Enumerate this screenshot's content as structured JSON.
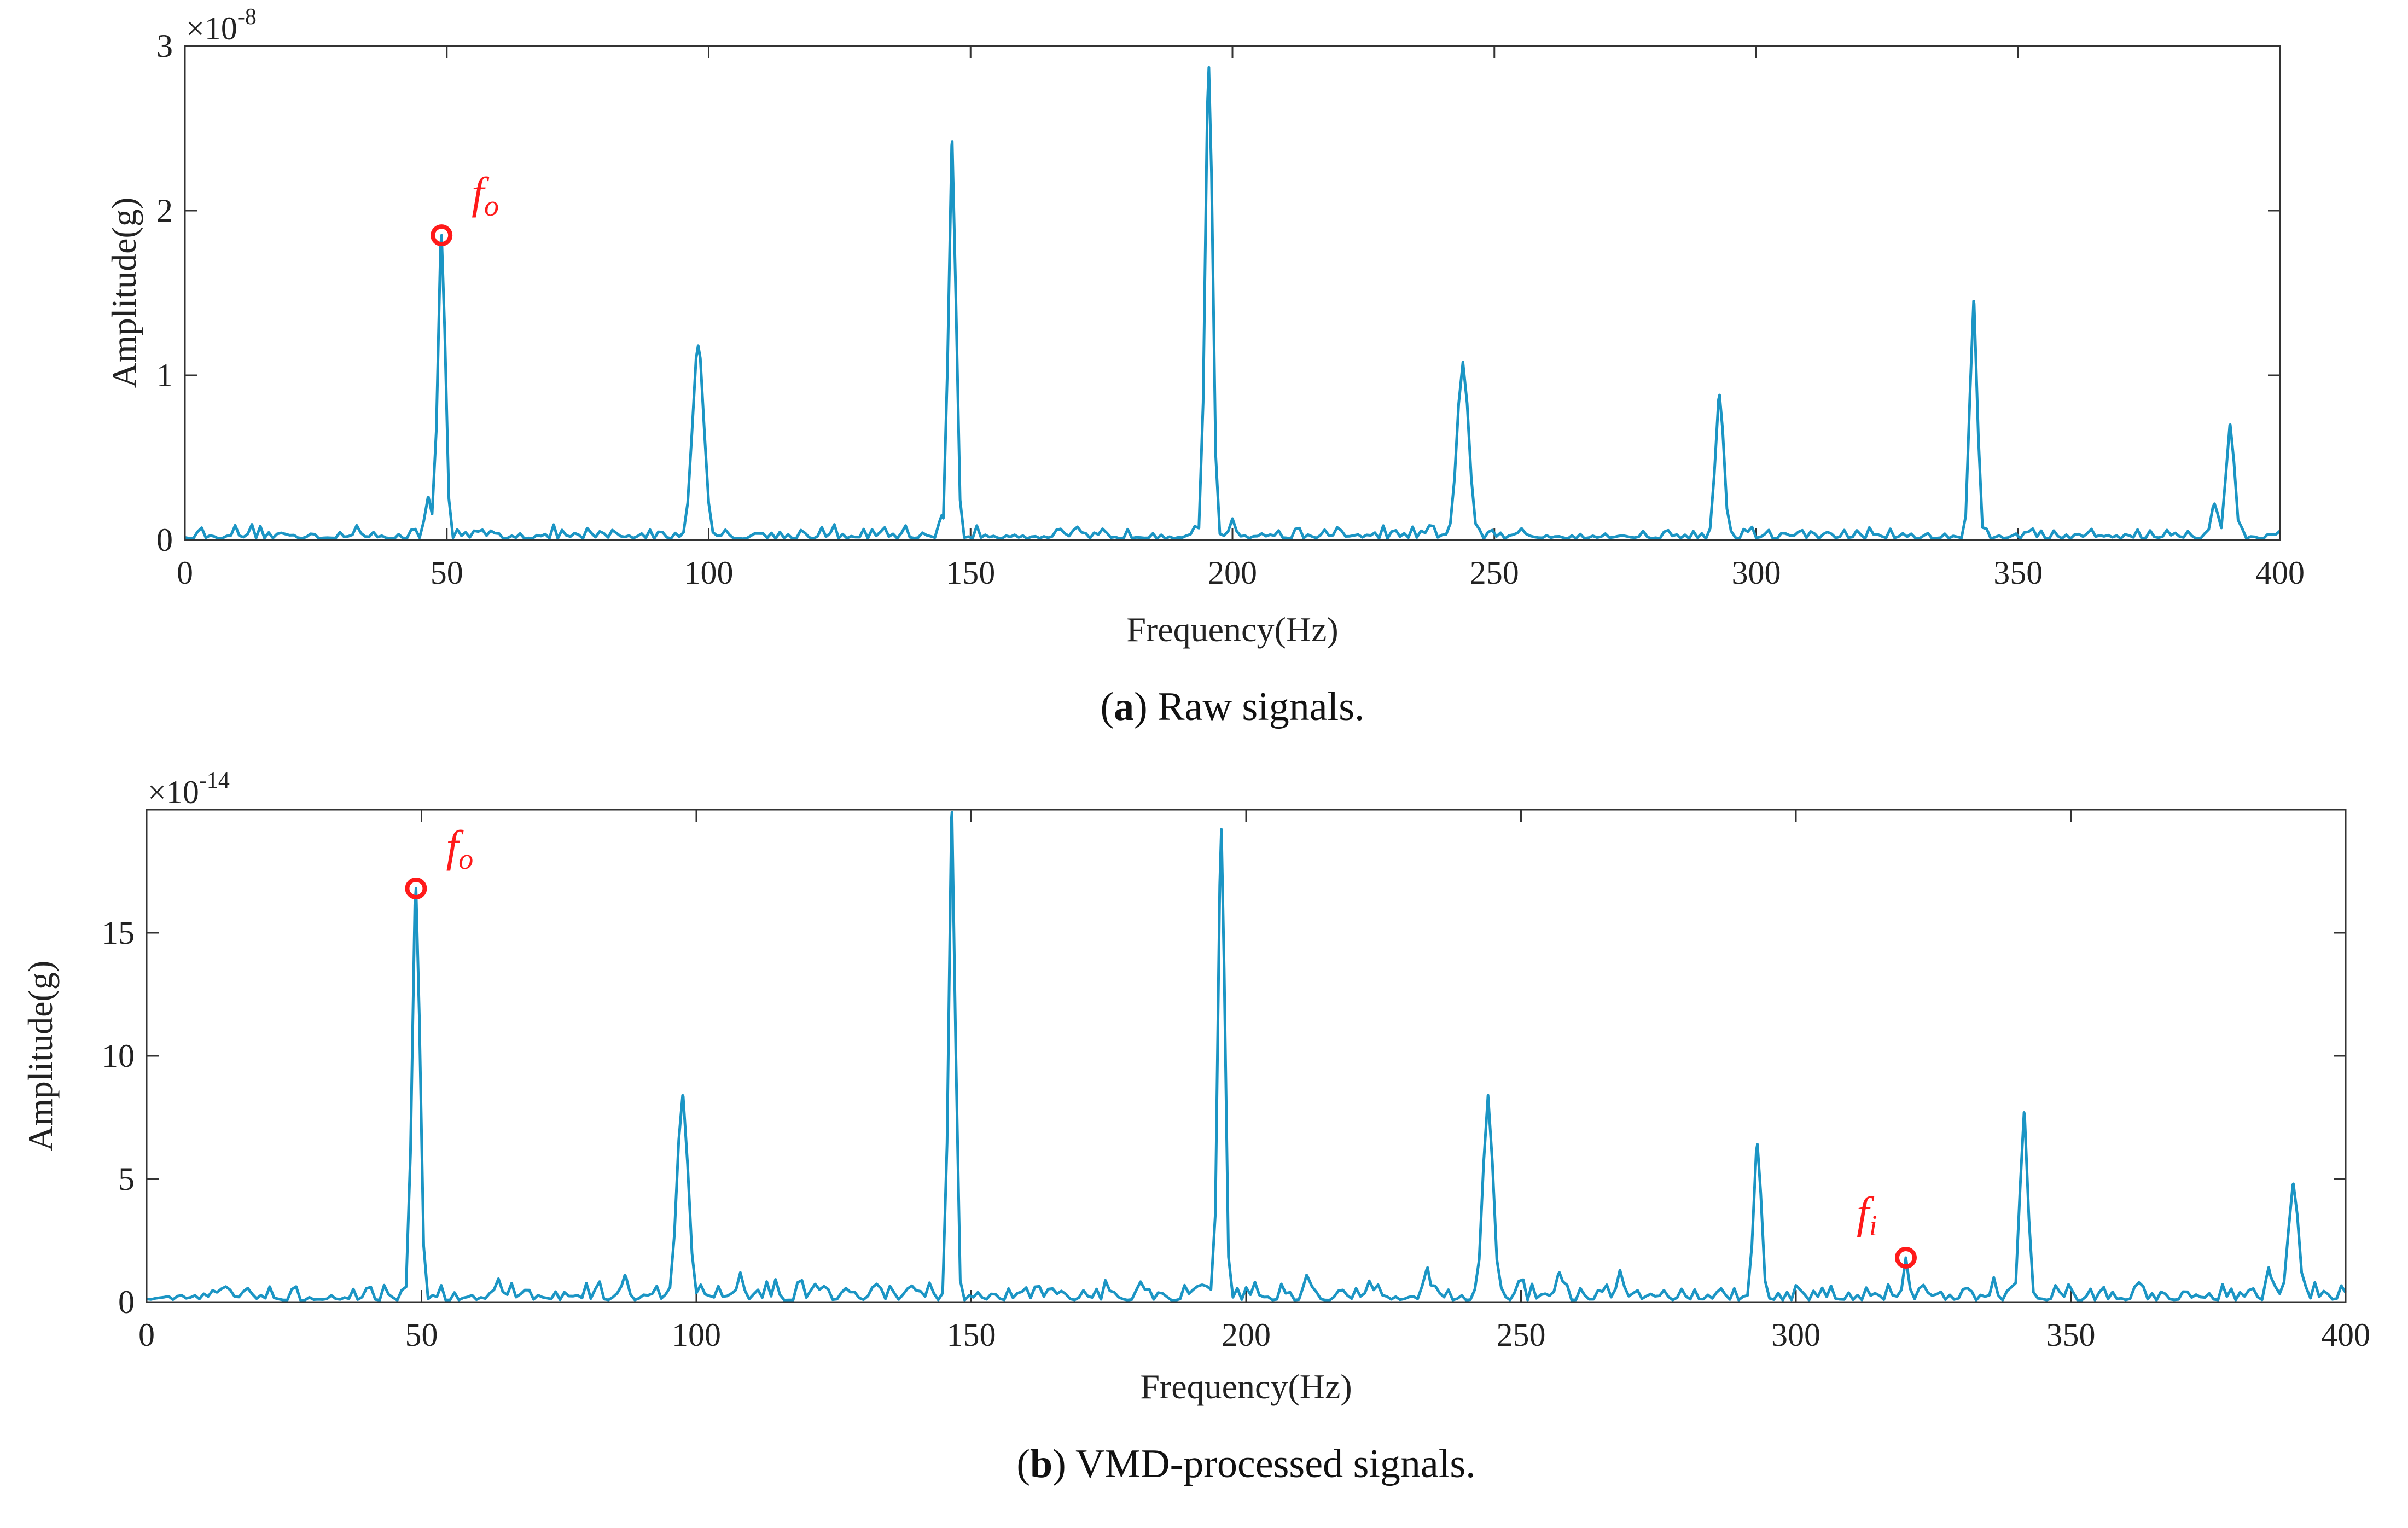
{
  "chart_data": [
    {
      "id": "a",
      "type": "line",
      "xlabel": "Frequency(Hz)",
      "ylabel": "Amplitude(g)",
      "multiplier": "×10",
      "exponent": "-8",
      "xlim": [
        0,
        400
      ],
      "ylim": [
        0,
        3
      ],
      "xticks": [
        0,
        50,
        100,
        150,
        200,
        250,
        300,
        350,
        400
      ],
      "yticks": [
        0,
        1,
        2,
        3
      ],
      "caption_letter": "a",
      "caption_text": ") Raw signals.",
      "caption_open": "(",
      "color": "#1b95c4",
      "baseline_noise": 0.05,
      "peaks": [
        {
          "f": 46.5,
          "a": 0.26,
          "w": 0.7
        },
        {
          "f": 49,
          "a": 1.85,
          "w": 0.7
        },
        {
          "f": 98,
          "a": 1.18,
          "w": 1.1
        },
        {
          "f": 144.5,
          "a": 0.15,
          "w": 0.6
        },
        {
          "f": 146.5,
          "a": 2.42,
          "w": 0.7
        },
        {
          "f": 195.5,
          "a": 2.87,
          "w": 0.7
        },
        {
          "f": 200,
          "a": 0.13,
          "w": 0.6
        },
        {
          "f": 244,
          "a": 1.08,
          "w": 1.1
        },
        {
          "f": 293,
          "a": 0.88,
          "w": 0.8
        },
        {
          "f": 341.5,
          "a": 1.45,
          "w": 0.7
        },
        {
          "f": 387.5,
          "a": 0.22,
          "w": 0.7
        },
        {
          "f": 390.5,
          "a": 0.7,
          "w": 0.8
        }
      ],
      "annotations": [
        {
          "label": "f",
          "sub": "o",
          "x": 49,
          "y": 1.85
        }
      ]
    },
    {
      "id": "b",
      "type": "line",
      "xlabel": "Frequency(Hz)",
      "ylabel": "Amplitude(g)",
      "multiplier": "×10",
      "exponent": "-14",
      "xlim": [
        0,
        400
      ],
      "ylim": [
        0,
        20
      ],
      "xticks": [
        0,
        50,
        100,
        150,
        200,
        250,
        300,
        350,
        400
      ],
      "yticks": [
        0,
        5,
        10,
        15
      ],
      "caption_letter": "b",
      "caption_text": ") VMD-processed signals.",
      "caption_open": "(",
      "color": "#1b95c4",
      "baseline_noise": 0.5,
      "peaks": [
        {
          "f": 49,
          "a": 16.8,
          "w": 0.7
        },
        {
          "f": 97.5,
          "a": 8.4,
          "w": 1.0
        },
        {
          "f": 146.5,
          "a": 19.9,
          "w": 0.6
        },
        {
          "f": 195.5,
          "a": 19.2,
          "w": 0.6
        },
        {
          "f": 192,
          "a": 0.7,
          "w": 2.0
        },
        {
          "f": 244,
          "a": 8.4,
          "w": 0.9
        },
        {
          "f": 233,
          "a": 1.4,
          "w": 0.5
        },
        {
          "f": 257,
          "a": 1.2,
          "w": 0.7
        },
        {
          "f": 268,
          "a": 1.3,
          "w": 0.6
        },
        {
          "f": 293,
          "a": 6.4,
          "w": 0.7
        },
        {
          "f": 320,
          "a": 1.8,
          "w": 0.5
        },
        {
          "f": 341.5,
          "a": 7.7,
          "w": 0.7
        },
        {
          "f": 336,
          "a": 1.0,
          "w": 0.5
        },
        {
          "f": 390.5,
          "a": 4.8,
          "w": 0.9
        },
        {
          "f": 386,
          "a": 1.4,
          "w": 0.5
        },
        {
          "f": 87,
          "a": 1.1,
          "w": 0.5
        },
        {
          "f": 108,
          "a": 1.2,
          "w": 0.6
        },
        {
          "f": 211,
          "a": 1.1,
          "w": 0.5
        }
      ],
      "annotations": [
        {
          "label": "f",
          "sub": "o",
          "x": 49,
          "y": 16.8
        },
        {
          "label": "f",
          "sub": "i",
          "x": 320,
          "y": 1.8
        }
      ]
    }
  ]
}
